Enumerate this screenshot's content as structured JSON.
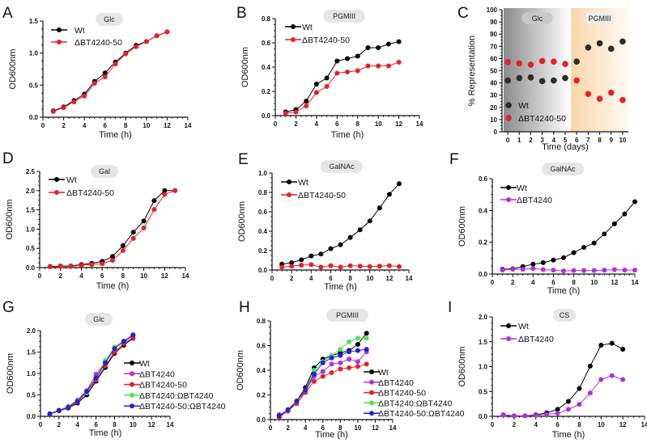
{
  "colors": {
    "Wt": "#000000",
    "Wt_C": "#2e2a26",
    "ΔBT4240-50": "#e8202a",
    "ΔBT4240": "#b030e0",
    "ΔBT4240:ΩBT4240": "#55e055",
    "ΔBT4240-50:ΩBT4240": "#2020e0",
    "glc_region": "#9a9a9a",
    "pgmiii_region": "#f8d9b0",
    "pill": "#e6e6e6"
  },
  "chart_data": [
    {
      "panel": "A",
      "type": "line",
      "title": "Glc",
      "xlabel": "Time (h)",
      "ylabel": "OD600nm",
      "xlim": [
        0,
        14
      ],
      "ylim": [
        0,
        1.5
      ],
      "xticks": [
        0,
        2,
        4,
        6,
        8,
        10,
        12,
        14
      ],
      "yticks": [
        0.0,
        0.5,
        1.0,
        1.5
      ],
      "yfmt": 1,
      "legend": "top-left",
      "grid": false,
      "series": [
        {
          "name": "Wt",
          "x": [
            1,
            2,
            3,
            4,
            5,
            6,
            7,
            8,
            9,
            10,
            11,
            12
          ],
          "y": [
            0.1,
            0.16,
            0.26,
            0.36,
            0.56,
            0.69,
            0.86,
            1.0,
            1.12,
            1.18,
            1.27,
            1.33
          ]
        },
        {
          "name": "ΔBT4240-50",
          "x": [
            1,
            2,
            3,
            4,
            5,
            6,
            7,
            8,
            9,
            10,
            11,
            12
          ],
          "y": [
            0.09,
            0.15,
            0.24,
            0.33,
            0.53,
            0.63,
            0.83,
            0.99,
            1.1,
            1.18,
            1.27,
            1.33
          ]
        }
      ]
    },
    {
      "panel": "B",
      "type": "line",
      "title": "PGMIII",
      "xlabel": "Time (h)",
      "ylabel": "OD600nm",
      "xlim": [
        0,
        14
      ],
      "ylim": [
        0,
        0.8
      ],
      "xticks": [
        0,
        2,
        4,
        6,
        8,
        10,
        12,
        14
      ],
      "yticks": [
        0.0,
        0.2,
        0.4,
        0.6,
        0.8
      ],
      "yfmt": 1,
      "legend": "top-left",
      "grid": false,
      "series": [
        {
          "name": "Wt",
          "x": [
            1,
            2,
            3,
            4,
            5,
            6,
            7,
            8,
            9,
            10,
            11,
            12
          ],
          "y": [
            0.03,
            0.05,
            0.12,
            0.26,
            0.31,
            0.45,
            0.47,
            0.49,
            0.56,
            0.56,
            0.59,
            0.61
          ]
        },
        {
          "name": "ΔBT4240-50",
          "x": [
            1,
            2,
            3,
            4,
            5,
            6,
            7,
            8,
            9,
            10,
            11,
            12
          ],
          "y": [
            0.02,
            0.03,
            0.08,
            0.19,
            0.24,
            0.35,
            0.36,
            0.37,
            0.41,
            0.41,
            0.41,
            0.44
          ]
        }
      ]
    },
    {
      "panel": "C",
      "type": "scatter",
      "title": "",
      "regions": [
        {
          "label": "Glc",
          "from": -0.5,
          "to": 5.5
        },
        {
          "label": "PGMIII",
          "from": 5.5,
          "to": 10.5
        }
      ],
      "xlabel": "Time (days)",
      "ylabel": "% Representation",
      "xlim": [
        -0.5,
        10.5
      ],
      "ylim": [
        0,
        100
      ],
      "xticks": [
        0,
        1,
        2,
        3,
        4,
        5,
        6,
        7,
        8,
        9,
        10
      ],
      "yticks": [
        0,
        10,
        20,
        30,
        40,
        50,
        60,
        70,
        80,
        90,
        100
      ],
      "yfmt": 0,
      "legend": "bottom-left",
      "grid": false,
      "series": [
        {
          "name": "Wt",
          "x": [
            0,
            1,
            2,
            3,
            4,
            5,
            6,
            7,
            8,
            9,
            10
          ],
          "y": [
            42,
            44,
            44.5,
            41.5,
            42,
            44,
            57.5,
            69,
            72.5,
            68,
            74
          ]
        },
        {
          "name": "ΔBT4240-50",
          "x": [
            0,
            1,
            2,
            3,
            4,
            5,
            6,
            7,
            8,
            9,
            10
          ],
          "y": [
            57,
            56,
            55,
            58,
            57.5,
            55.5,
            42,
            31,
            27,
            32,
            26
          ]
        }
      ]
    },
    {
      "panel": "D",
      "type": "line",
      "title": "Gal",
      "xlabel": "Time (h)",
      "ylabel": "OD600nm",
      "xlim": [
        0,
        14
      ],
      "ylim": [
        0,
        2.5
      ],
      "xticks": [
        0,
        2,
        4,
        6,
        8,
        10,
        12,
        14
      ],
      "yticks": [
        0.0,
        0.5,
        1.0,
        1.5,
        2.0,
        2.5
      ],
      "yfmt": 1,
      "legend": "top-left",
      "grid": false,
      "series": [
        {
          "name": "Wt",
          "x": [
            1,
            2,
            3,
            4,
            5,
            6,
            7,
            8,
            9,
            10,
            11,
            12,
            13
          ],
          "y": [
            0.03,
            0.04,
            0.04,
            0.08,
            0.11,
            0.16,
            0.29,
            0.57,
            0.92,
            1.21,
            1.74,
            2.0,
            2.0
          ]
        },
        {
          "name": "ΔBT4240-50",
          "x": [
            1,
            2,
            3,
            4,
            5,
            6,
            7,
            8,
            9,
            10,
            11,
            12,
            13
          ],
          "y": [
            0.02,
            0.03,
            0.03,
            0.06,
            0.08,
            0.1,
            0.19,
            0.44,
            0.76,
            1.03,
            1.51,
            1.9,
            2.0
          ]
        }
      ]
    },
    {
      "panel": "E",
      "type": "line",
      "title": "GalNAc",
      "xlabel": "Time (h)",
      "ylabel": "OD600nm",
      "xlim": [
        0,
        14
      ],
      "ylim": [
        0,
        1.0
      ],
      "xticks": [
        0,
        2,
        4,
        6,
        8,
        10,
        12,
        14
      ],
      "yticks": [
        0.0,
        0.2,
        0.4,
        0.6,
        0.8,
        1.0
      ],
      "yfmt": 1,
      "legend": "top-left",
      "grid": false,
      "series": [
        {
          "name": "Wt",
          "x": [
            1,
            2,
            3,
            4,
            5,
            6,
            7,
            8,
            9,
            10,
            11,
            12,
            13
          ],
          "y": [
            0.06,
            0.075,
            0.105,
            0.145,
            0.165,
            0.22,
            0.26,
            0.335,
            0.415,
            0.505,
            0.64,
            0.78,
            0.89
          ]
        },
        {
          "name": "ΔBT4240-50",
          "x": [
            1,
            2,
            3,
            4,
            5,
            6,
            7,
            8,
            9,
            10,
            11,
            12,
            13
          ],
          "y": [
            0.03,
            0.04,
            0.05,
            0.055,
            0.03,
            0.045,
            0.03,
            0.045,
            0.04,
            0.035,
            0.04,
            0.045,
            0.035
          ]
        }
      ]
    },
    {
      "panel": "F",
      "type": "line",
      "title": "GalNAc",
      "xlabel": "Time (h)",
      "ylabel": "OD600nm",
      "xlim": [
        0,
        14
      ],
      "ylim": [
        0,
        0.6
      ],
      "xticks": [
        0,
        2,
        4,
        6,
        8,
        10,
        12,
        14
      ],
      "yticks": [
        0.0,
        0.2,
        0.4,
        0.6
      ],
      "yfmt": 1,
      "legend": "top-left",
      "grid": false,
      "series": [
        {
          "name": "Wt",
          "x": [
            1,
            2,
            3,
            4,
            5,
            6,
            7,
            8,
            9,
            10,
            11,
            12,
            13,
            14
          ],
          "y": [
            0.03,
            0.033,
            0.047,
            0.062,
            0.072,
            0.088,
            0.103,
            0.135,
            0.168,
            0.195,
            0.252,
            0.316,
            0.378,
            0.455
          ]
        },
        {
          "name": "ΔBT4240",
          "x": [
            1,
            2,
            3,
            4,
            5,
            6,
            7,
            8,
            9,
            10,
            11,
            12,
            13,
            14
          ],
          "y": [
            0.025,
            0.03,
            0.03,
            0.035,
            0.028,
            0.025,
            0.02,
            0.022,
            0.022,
            0.022,
            0.025,
            0.028,
            0.025,
            0.025
          ]
        }
      ]
    },
    {
      "panel": "G",
      "type": "line",
      "title": "Glc",
      "xlabel": "Time (h)",
      "ylabel": "OD600nm",
      "xlim": [
        0,
        14
      ],
      "ylim": [
        0,
        2.0
      ],
      "xticks": [
        0,
        2,
        4,
        6,
        8,
        10,
        12,
        14
      ],
      "yticks": [
        0.0,
        0.5,
        1.0,
        1.5,
        2.0
      ],
      "yfmt": 1,
      "legend": "right",
      "grid": false,
      "series": [
        {
          "name": "Wt",
          "x": [
            1,
            2,
            3,
            4,
            5,
            6,
            7,
            8,
            9,
            10
          ],
          "y": [
            0.05,
            0.13,
            0.19,
            0.31,
            0.5,
            0.82,
            1.14,
            1.47,
            1.66,
            1.82
          ]
        },
        {
          "name": "ΔBT4240",
          "x": [
            1,
            2,
            3,
            4,
            5,
            6,
            7,
            8,
            9,
            10
          ],
          "y": [
            0.06,
            0.14,
            0.23,
            0.38,
            0.6,
            0.98,
            1.27,
            1.6,
            1.74,
            1.88
          ]
        },
        {
          "name": "ΔBT4240-50",
          "x": [
            1,
            2,
            3,
            4,
            5,
            6,
            7,
            8,
            9,
            10
          ],
          "y": [
            0.05,
            0.13,
            0.2,
            0.33,
            0.55,
            0.85,
            1.18,
            1.5,
            1.7,
            1.83
          ]
        },
        {
          "name": "ΔBT4240:ΩBT4240",
          "x": [
            1,
            2,
            3,
            4,
            5,
            6,
            7,
            8,
            9,
            10
          ],
          "y": [
            0.06,
            0.14,
            0.22,
            0.36,
            0.55,
            0.9,
            1.3,
            1.62,
            1.76,
            1.9
          ]
        },
        {
          "name": "ΔBT4240-50:ΩBT4240",
          "x": [
            1,
            2,
            3,
            4,
            5,
            6,
            7,
            8,
            9,
            10
          ],
          "y": [
            0.06,
            0.14,
            0.21,
            0.35,
            0.58,
            0.9,
            1.25,
            1.58,
            1.75,
            1.9
          ]
        }
      ]
    },
    {
      "panel": "H",
      "type": "line",
      "title": "PGMIII",
      "xlabel": "Time (h)",
      "ylabel": "OD600nm",
      "xlim": [
        0,
        14
      ],
      "ylim": [
        0,
        0.8
      ],
      "xticks": [
        0,
        2,
        4,
        6,
        8,
        10,
        12,
        14
      ],
      "yticks": [
        0.0,
        0.2,
        0.4,
        0.6,
        0.8
      ],
      "yfmt": 1,
      "legend": "right",
      "grid": false,
      "series": [
        {
          "name": "Wt",
          "x": [
            1,
            2,
            3,
            4,
            5,
            6,
            7,
            8,
            9,
            10,
            11
          ],
          "y": [
            0.03,
            0.07,
            0.15,
            0.26,
            0.42,
            0.49,
            0.52,
            0.54,
            0.56,
            0.61,
            0.7
          ]
        },
        {
          "name": "ΔBT4240",
          "x": [
            1,
            2,
            3,
            4,
            5,
            6,
            7,
            8,
            9,
            10,
            11
          ],
          "y": [
            0.04,
            0.07,
            0.13,
            0.23,
            0.35,
            0.39,
            0.45,
            0.46,
            0.49,
            0.47,
            0.55
          ]
        },
        {
          "name": "ΔBT4240-50",
          "x": [
            1,
            2,
            3,
            4,
            5,
            6,
            7,
            8,
            9,
            10,
            11
          ],
          "y": [
            0.02,
            0.07,
            0.13,
            0.22,
            0.31,
            0.35,
            0.38,
            0.41,
            0.42,
            0.43,
            0.45
          ]
        },
        {
          "name": "ΔBT4240:ΩBT4240",
          "x": [
            1,
            2,
            3,
            4,
            5,
            6,
            7,
            8,
            9,
            10,
            11
          ],
          "y": [
            0.03,
            0.08,
            0.15,
            0.24,
            0.4,
            0.47,
            0.52,
            0.57,
            0.63,
            0.66,
            0.66
          ]
        },
        {
          "name": "ΔBT4240-50:ΩBT4240",
          "x": [
            1,
            2,
            3,
            4,
            5,
            6,
            7,
            8,
            9,
            10,
            11
          ],
          "y": [
            0.03,
            0.08,
            0.15,
            0.24,
            0.37,
            0.46,
            0.5,
            0.52,
            0.55,
            0.56,
            0.57
          ]
        }
      ]
    },
    {
      "panel": "I",
      "type": "line",
      "title": "CS",
      "xlabel": "Time (h)",
      "ylabel": "OD600nm",
      "xlim": [
        0,
        14
      ],
      "ylim": [
        0,
        2.0
      ],
      "xticks": [
        0,
        2,
        4,
        6,
        8,
        10,
        12,
        14
      ],
      "yticks": [
        0.0,
        0.5,
        1.0,
        1.5,
        2.0
      ],
      "yfmt": 1,
      "legend": "top-left",
      "grid": false,
      "series": [
        {
          "name": "Wt",
          "x": [
            1,
            2,
            3,
            4,
            5,
            6,
            7,
            8,
            9,
            10,
            11,
            12
          ],
          "y": [
            0.03,
            0.01,
            0.01,
            0.03,
            0.07,
            0.14,
            0.3,
            0.56,
            1.01,
            1.43,
            1.47,
            1.35
          ]
        },
        {
          "name": "ΔBT4240",
          "x": [
            1,
            2,
            3,
            4,
            5,
            6,
            7,
            8,
            9,
            10,
            11,
            12
          ],
          "y": [
            0.03,
            0.01,
            0.01,
            0.02,
            0.04,
            0.06,
            0.14,
            0.24,
            0.47,
            0.74,
            0.82,
            0.74
          ]
        }
      ]
    }
  ]
}
